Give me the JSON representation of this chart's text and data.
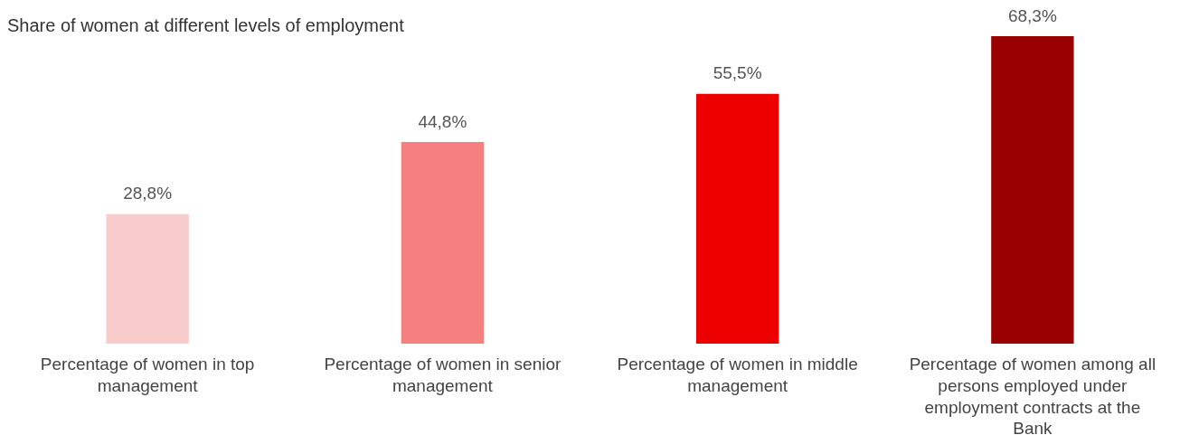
{
  "chart_data": {
    "type": "bar",
    "title": "Share of women at different levels of employment",
    "categories": [
      "Percentage of women in top management",
      "Percentage of women in senior management",
      "Percentage of women in middle management",
      "Percentage of women among all persons employed under employment contracts at the Bank"
    ],
    "values": [
      28.8,
      44.8,
      55.5,
      68.3
    ],
    "value_labels": [
      "28,8%",
      "44,8%",
      "55,5%",
      "68,3%"
    ],
    "colors": [
      "#f9cccc",
      "#f48080",
      "#ec0000",
      "#990000"
    ],
    "grid": false,
    "legend": false
  }
}
